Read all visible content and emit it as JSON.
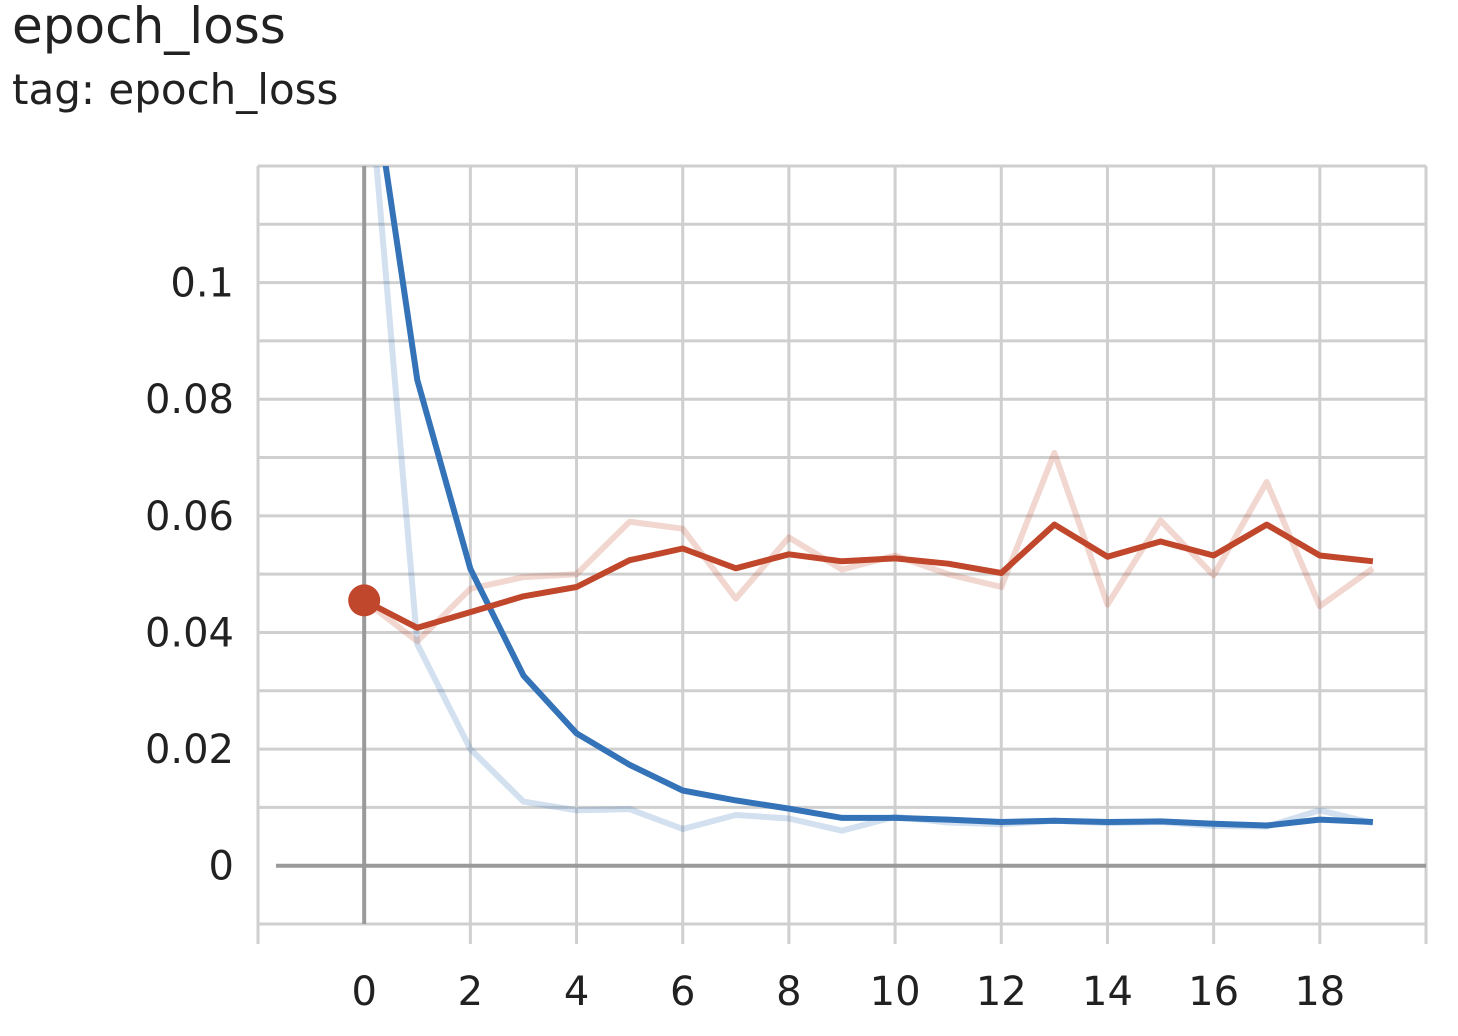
{
  "card": {
    "title": "epoch_loss",
    "subtitle": "tag: epoch_loss"
  },
  "chart_data": {
    "type": "line",
    "title": "epoch_loss",
    "subtitle": "tag: epoch_loss",
    "xlabel": "",
    "ylabel": "",
    "xlim": [
      -2,
      20
    ],
    "ylim": [
      -0.01,
      0.12
    ],
    "x_ticks": [
      0,
      2,
      4,
      6,
      8,
      10,
      12,
      14,
      16,
      18
    ],
    "x_tick_labels": [
      "0",
      "2",
      "4",
      "6",
      "8",
      "10",
      "12",
      "14",
      "16",
      "18"
    ],
    "y_ticks": [
      0,
      0.02,
      0.04,
      0.06,
      0.08,
      0.1
    ],
    "y_tick_labels": [
      "0",
      "0.02",
      "0.04",
      "0.06",
      "0.08",
      "0.1"
    ],
    "grid": true,
    "series": [
      {
        "color": "#3473b8",
        "x": [
          0,
          1,
          2,
          3,
          4,
          5,
          6,
          7,
          8,
          9,
          10,
          11,
          12,
          13,
          14,
          15,
          16,
          17,
          18,
          19
        ],
        "values": [
          0.145,
          0.0833,
          0.0509,
          0.0326,
          0.0227,
          0.0173,
          0.0129,
          0.0112,
          0.0098,
          0.0082,
          0.0082,
          0.0079,
          0.0075,
          0.0077,
          0.0075,
          0.0076,
          0.0072,
          0.0069,
          0.0079,
          0.0075
        ],
        "raw_values": [
          0.145,
          0.038,
          0.02,
          0.011,
          0.0095,
          0.0097,
          0.0063,
          0.0087,
          0.0081,
          0.006,
          0.0084,
          0.0074,
          0.0071,
          0.0077,
          0.0073,
          0.0075,
          0.0068,
          0.0067,
          0.0095,
          0.0073
        ]
      },
      {
        "color": "#c0472b",
        "x": [
          0,
          1,
          2,
          3,
          4,
          5,
          6,
          7,
          8,
          9,
          10,
          11,
          12,
          13,
          14,
          15,
          16,
          17,
          18,
          19
        ],
        "values": [
          0.0455,
          0.0408,
          0.0435,
          0.0462,
          0.0478,
          0.0524,
          0.0544,
          0.051,
          0.0534,
          0.0522,
          0.0527,
          0.0518,
          0.0502,
          0.0585,
          0.053,
          0.0556,
          0.0532,
          0.0585,
          0.0532,
          0.0522
        ],
        "raw_values": [
          0.0455,
          0.0385,
          0.0475,
          0.0495,
          0.05,
          0.059,
          0.0578,
          0.0458,
          0.0563,
          0.0508,
          0.0532,
          0.05,
          0.0478,
          0.0708,
          0.0448,
          0.0592,
          0.0498,
          0.0658,
          0.0445,
          0.051
        ]
      }
    ],
    "highlight_point": {
      "series": 1,
      "x": 0,
      "y": 0.0455
    }
  }
}
